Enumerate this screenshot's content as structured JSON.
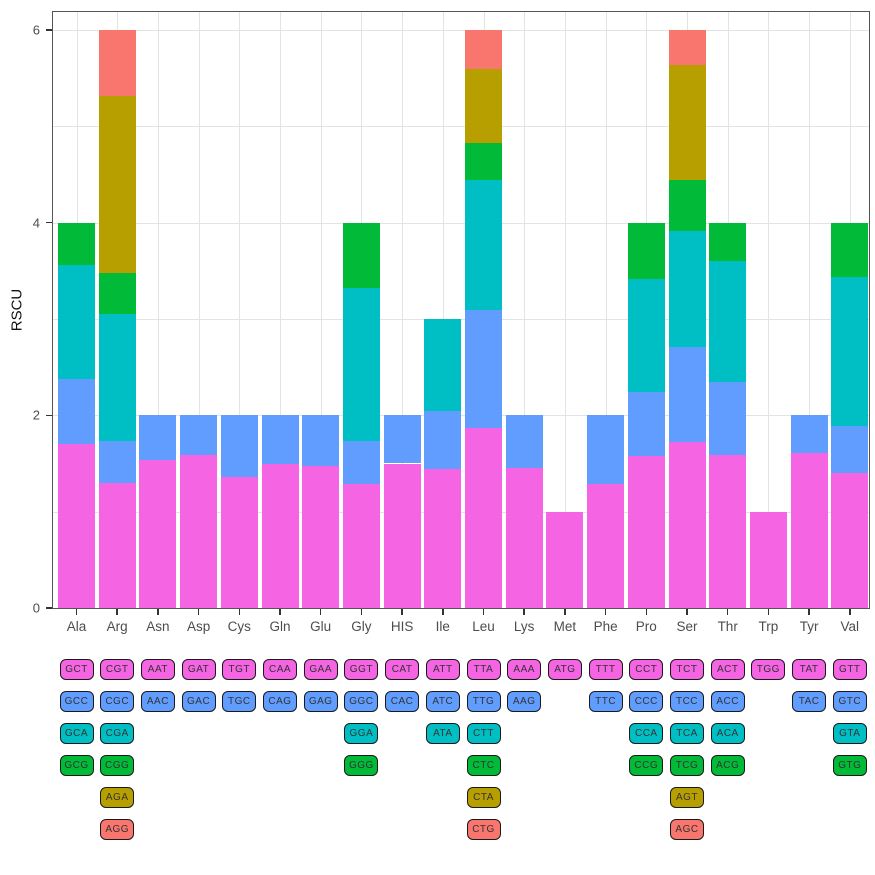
{
  "chart_data": {
    "type": "bar",
    "stacked": true,
    "title": "",
    "xlabel": "",
    "ylabel": "RSCU",
    "ylim": [
      0,
      6
    ],
    "yticks": [
      0,
      2,
      4,
      6
    ],
    "gridlines_y": [
      1,
      2,
      3,
      4,
      5,
      6
    ],
    "grid": "on",
    "legend_position": "codon table below x-axis, row color = stack order bottom-to-top",
    "palette": [
      "#F564E3",
      "#619CFF",
      "#00BFC4",
      "#00BA38",
      "#B79F00",
      "#F8766D"
    ],
    "palette_names": [
      "magenta",
      "blue",
      "teal",
      "green",
      "olive",
      "salmon"
    ],
    "categories": [
      "Ala",
      "Arg",
      "Asn",
      "Asp",
      "Cys",
      "Gln",
      "Glu",
      "Gly",
      "HIS",
      "Ile",
      "Leu",
      "Lys",
      "Met",
      "Phe",
      "Pro",
      "Ser",
      "Thr",
      "Trp",
      "Tyr",
      "Val"
    ],
    "amino_acids": [
      {
        "name": "Ala",
        "codons": [
          {
            "codon": "GCT",
            "rscu": 1.7
          },
          {
            "codon": "GCC",
            "rscu": 0.68
          },
          {
            "codon": "GCA",
            "rscu": 1.18
          },
          {
            "codon": "GCG",
            "rscu": 0.44
          }
        ]
      },
      {
        "name": "Arg",
        "codons": [
          {
            "codon": "CGT",
            "rscu": 1.3
          },
          {
            "codon": "CGC",
            "rscu": 0.43
          },
          {
            "codon": "CGA",
            "rscu": 1.32
          },
          {
            "codon": "CGG",
            "rscu": 0.43
          },
          {
            "codon": "AGA",
            "rscu": 1.84
          },
          {
            "codon": "AGG",
            "rscu": 0.68
          }
        ]
      },
      {
        "name": "Asn",
        "codons": [
          {
            "codon": "AAT",
            "rscu": 1.54
          },
          {
            "codon": "AAC",
            "rscu": 0.46
          }
        ]
      },
      {
        "name": "Asp",
        "codons": [
          {
            "codon": "GAT",
            "rscu": 1.59
          },
          {
            "codon": "GAC",
            "rscu": 0.41
          }
        ]
      },
      {
        "name": "Cys",
        "codons": [
          {
            "codon": "TGT",
            "rscu": 1.36
          },
          {
            "codon": "TGC",
            "rscu": 0.64
          }
        ]
      },
      {
        "name": "Gln",
        "codons": [
          {
            "codon": "CAA",
            "rscu": 1.49
          },
          {
            "codon": "CAG",
            "rscu": 0.51
          }
        ]
      },
      {
        "name": "Glu",
        "codons": [
          {
            "codon": "GAA",
            "rscu": 1.47
          },
          {
            "codon": "GAG",
            "rscu": 0.53
          }
        ]
      },
      {
        "name": "Gly",
        "codons": [
          {
            "codon": "GGT",
            "rscu": 1.29
          },
          {
            "codon": "GGC",
            "rscu": 0.44
          },
          {
            "codon": "GGA",
            "rscu": 1.59
          },
          {
            "codon": "GGG",
            "rscu": 0.68
          }
        ]
      },
      {
        "name": "HIS",
        "codons": [
          {
            "codon": "CAT",
            "rscu": 1.5
          },
          {
            "codon": "CAC",
            "rscu": 0.5
          }
        ]
      },
      {
        "name": "Ile",
        "codons": [
          {
            "codon": "ATT",
            "rscu": 1.44
          },
          {
            "codon": "ATC",
            "rscu": 0.6
          },
          {
            "codon": "ATA",
            "rscu": 0.96
          }
        ]
      },
      {
        "name": "Leu",
        "codons": [
          {
            "codon": "TTA",
            "rscu": 1.87
          },
          {
            "codon": "TTG",
            "rscu": 1.22
          },
          {
            "codon": "CTT",
            "rscu": 1.35
          },
          {
            "codon": "CTC",
            "rscu": 0.39
          },
          {
            "codon": "CTA",
            "rscu": 0.77
          },
          {
            "codon": "CTG",
            "rscu": 0.4
          }
        ]
      },
      {
        "name": "Lys",
        "codons": [
          {
            "codon": "AAA",
            "rscu": 1.45
          },
          {
            "codon": "AAG",
            "rscu": 0.55
          }
        ]
      },
      {
        "name": "Met",
        "codons": [
          {
            "codon": "ATG",
            "rscu": 1.0
          }
        ]
      },
      {
        "name": "Phe",
        "codons": [
          {
            "codon": "TTT",
            "rscu": 1.29
          },
          {
            "codon": "TTC",
            "rscu": 0.71
          }
        ]
      },
      {
        "name": "Pro",
        "codons": [
          {
            "codon": "CCT",
            "rscu": 1.58
          },
          {
            "codon": "CCC",
            "rscu": 0.66
          },
          {
            "codon": "CCA",
            "rscu": 1.18
          },
          {
            "codon": "CCG",
            "rscu": 0.58
          }
        ]
      },
      {
        "name": "Ser",
        "codons": [
          {
            "codon": "TCT",
            "rscu": 1.72
          },
          {
            "codon": "TCC",
            "rscu": 0.99
          },
          {
            "codon": "TCA",
            "rscu": 1.2
          },
          {
            "codon": "TCG",
            "rscu": 0.53
          },
          {
            "codon": "AGT",
            "rscu": 1.2
          },
          {
            "codon": "AGC",
            "rscu": 0.36
          }
        ]
      },
      {
        "name": "Thr",
        "codons": [
          {
            "codon": "ACT",
            "rscu": 1.59
          },
          {
            "codon": "ACC",
            "rscu": 0.76
          },
          {
            "codon": "ACA",
            "rscu": 1.25
          },
          {
            "codon": "ACG",
            "rscu": 0.4
          }
        ]
      },
      {
        "name": "Trp",
        "codons": [
          {
            "codon": "TGG",
            "rscu": 1.0
          }
        ]
      },
      {
        "name": "Tyr",
        "codons": [
          {
            "codon": "TAT",
            "rscu": 1.61
          },
          {
            "codon": "TAC",
            "rscu": 0.39
          }
        ]
      },
      {
        "name": "Val",
        "codons": [
          {
            "codon": "GTT",
            "rscu": 1.4
          },
          {
            "codon": "GTC",
            "rscu": 0.49
          },
          {
            "codon": "GTA",
            "rscu": 1.55
          },
          {
            "codon": "GTG",
            "rscu": 0.56
          }
        ]
      }
    ]
  }
}
